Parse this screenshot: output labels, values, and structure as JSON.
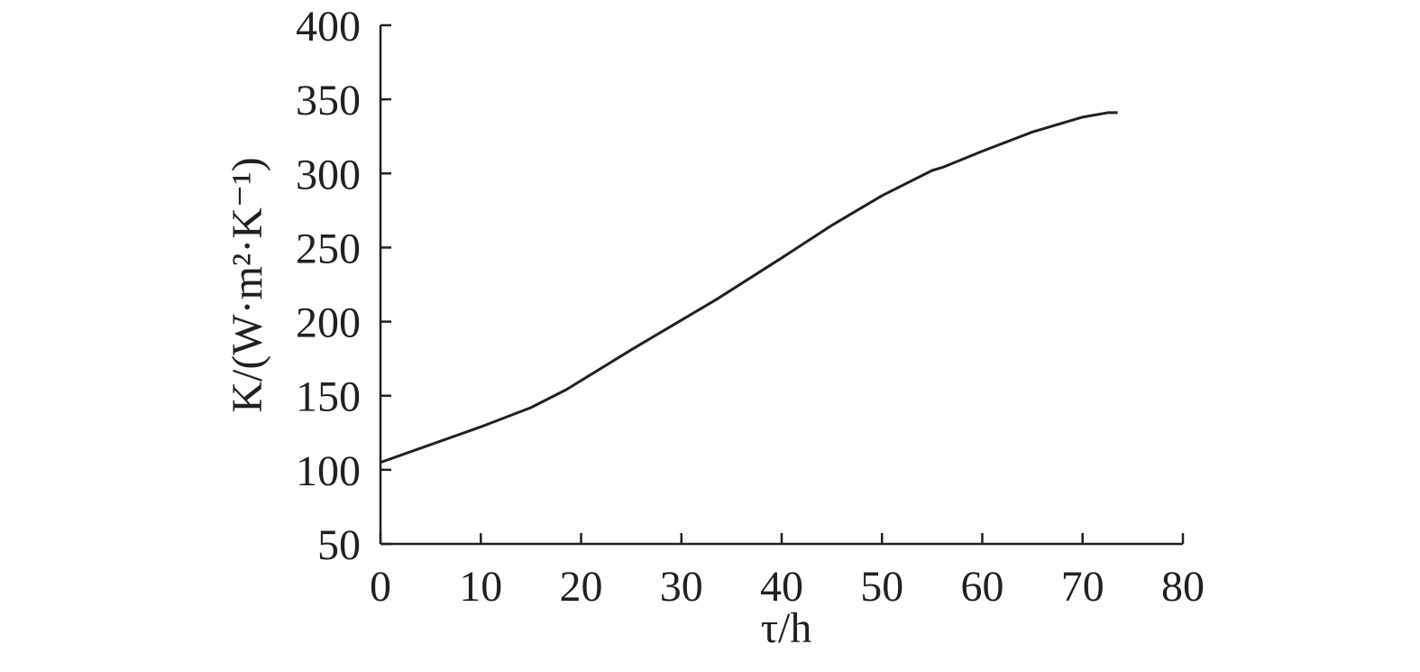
{
  "chart_data": {
    "type": "line",
    "x_label": "τ/h",
    "y_label": "K/(W·m²·K⁻¹)",
    "x": [
      0,
      5,
      10,
      15,
      18.5,
      25,
      30,
      33.5,
      40,
      45,
      50,
      55,
      56,
      60,
      65,
      70,
      72.5,
      73.5
    ],
    "values": [
      105,
      117,
      129,
      142,
      154,
      181,
      201,
      215,
      243,
      265,
      285,
      302,
      304,
      315,
      328,
      338,
      341,
      341
    ],
    "color": "#231f20",
    "xlim": [
      0,
      80
    ],
    "xticks": [
      0,
      10,
      20,
      30,
      40,
      50,
      60,
      70,
      80
    ],
    "ylim": [
      50,
      400
    ],
    "yticks": [
      50,
      100,
      150,
      200,
      250,
      300,
      350,
      400
    ],
    "grid": false
  }
}
